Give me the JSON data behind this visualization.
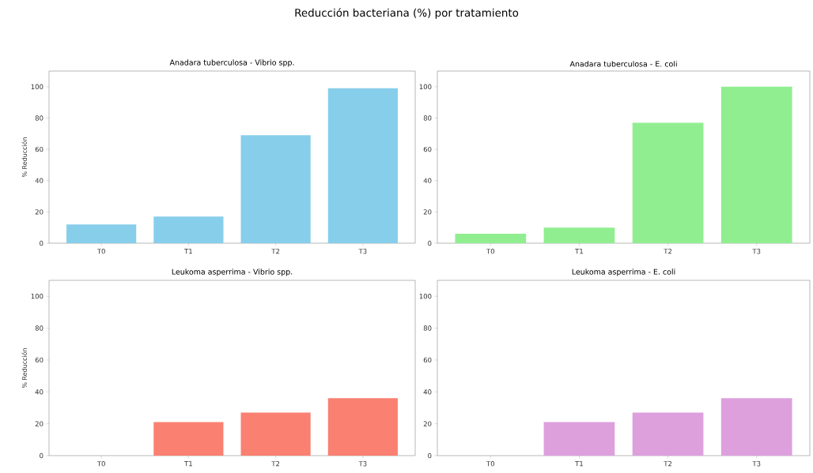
{
  "chart_data": [
    {
      "type": "bar",
      "title": "Anadara tuberculosa - Vibrio spp.",
      "ylabel": "% Reducción",
      "categories": [
        "T0",
        "T1",
        "T2",
        "T3"
      ],
      "values": [
        12,
        17,
        69,
        99
      ],
      "color": "#87ceeb",
      "ylim": [
        0,
        110
      ],
      "yticks": [
        0,
        20,
        40,
        60,
        80,
        100
      ],
      "annotations": [
        "Reducción bacteriana (%) por tratamiento"
      ]
    },
    {
      "type": "bar",
      "title": "Anadara tuberculosa - E. coli",
      "categories": [
        "T0",
        "T1",
        "T2",
        "T3"
      ],
      "values": [
        6,
        10,
        77,
        100
      ],
      "color": "#90ee90",
      "ylim": [
        0,
        110
      ],
      "yticks": [
        0,
        20,
        40,
        60,
        80,
        100
      ]
    },
    {
      "type": "bar",
      "title": "Leukoma asperrima - Vibrio spp.",
      "ylabel": "% Reducción",
      "categories": [
        "T0",
        "T1",
        "T2",
        "T3"
      ],
      "values": [
        0,
        21,
        27,
        36
      ],
      "color": "#fa8072",
      "ylim": [
        0,
        110
      ],
      "yticks": [
        0,
        20,
        40,
        60,
        80,
        100
      ]
    },
    {
      "type": "bar",
      "title": "Leukoma asperrima - E. coli",
      "categories": [
        "T0",
        "T1",
        "T2",
        "T3"
      ],
      "values": [
        0,
        21,
        27,
        36
      ],
      "color": "#dda0dd",
      "ylim": [
        0,
        110
      ],
      "yticks": [
        0,
        20,
        40,
        60,
        80,
        100
      ]
    }
  ]
}
